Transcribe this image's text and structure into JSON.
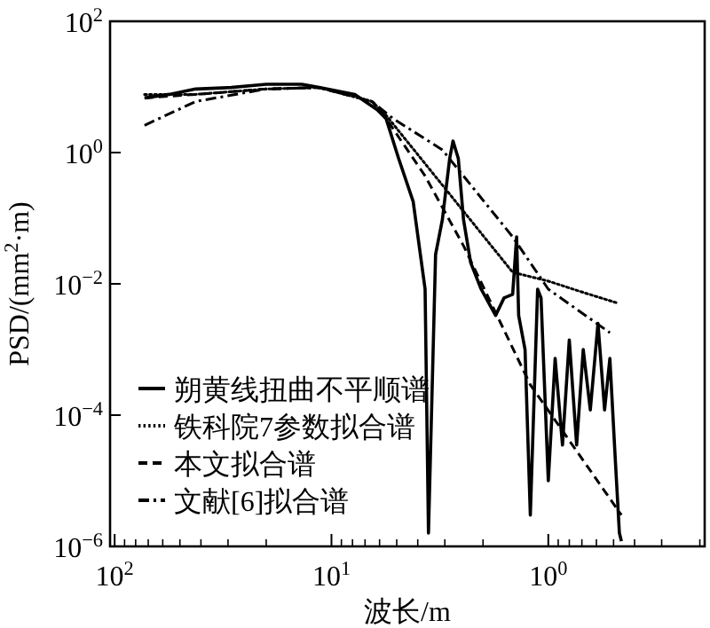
{
  "chart_data": {
    "type": "line",
    "xlabel": "波长/m",
    "ylabel": "PSD/(mm$^{2}$·m)",
    "log": "xy",
    "grid": false,
    "legend": "bottom left",
    "marker": "none",
    "xlim": [
      105,
      0.19
    ],
    "xticks": [
      {
        "value": 100,
        "label": "10$^{2}$"
      },
      {
        "value": 10,
        "label": "10$^{1}$"
      },
      {
        "value": 1,
        "label": "10$^{0}$"
      }
    ],
    "ylim": [
      1e-06,
      100
    ],
    "yticks": [
      {
        "value": 1e-06,
        "label": "10$^{−6}$"
      },
      {
        "value": 0.0001,
        "label": "10$^{−4}$"
      },
      {
        "value": 0.01,
        "label": "10$^{−2}$"
      },
      {
        "value": 1,
        "label": "10$^{0}$"
      },
      {
        "value": 100,
        "label": "10$^{2}$"
      }
    ],
    "series": [
      {
        "name": "朔黄线扭曲不平顺谱",
        "color": "#000000",
        "line_style": "solid",
        "x": [
          72.8,
          56,
          42.3,
          29,
          20.0,
          13.7,
          11.4,
          7.8,
          6.15,
          5.6,
          4.9,
          4.2,
          3.7,
          3.57,
          3.31,
          3.08,
          2.85,
          2.75,
          2.6,
          2.46,
          2.28,
          2.04,
          1.85,
          1.75,
          1.6,
          1.46,
          1.4,
          1.37,
          1.28,
          1.21,
          1.12,
          1.08,
          1.0,
          0.93,
          0.86,
          0.8,
          0.74,
          0.69,
          0.64,
          0.59,
          0.55,
          0.52,
          0.49,
          0.47,
          0.46
        ],
        "values": [
          6.8,
          7.7,
          9.3,
          9.8,
          11,
          11,
          9.8,
          7.7,
          4.5,
          3.3,
          0.81,
          0.18,
          0.0083,
          1.6e-06,
          0.028,
          0.095,
          0.81,
          1.5,
          0.81,
          0.095,
          0.021,
          0.0083,
          0.0046,
          0.0033,
          0.0061,
          0.0069,
          0.052,
          0.0033,
          0.001,
          3e-06,
          0.0083,
          0.0061,
          1e-05,
          0.00073,
          3.5e-05,
          0.0014,
          3.5e-05,
          0.001,
          0.00012,
          0.0025,
          0.00012,
          0.00073,
          1.9e-05,
          1.6e-06,
          1.2e-06
        ]
      },
      {
        "name": "铁科院7参数拟合谱",
        "color": "#000000",
        "line_style": "dotted",
        "x": [
          72.8,
          42.3,
          20.0,
          11.4,
          6.5,
          5.6,
          3.08,
          1.46,
          1.0,
          0.69,
          0.48
        ],
        "values": [
          7.7,
          7.7,
          9.3,
          9.8,
          6.0,
          3.7,
          0.32,
          0.015,
          0.011,
          0.0074,
          0.0051
        ]
      },
      {
        "name": "本文拟合谱",
        "color": "#000000",
        "line_style": "dashed",
        "x": [
          72.8,
          42.3,
          20.0,
          11.4,
          6.5,
          5.6,
          3.7,
          2.46,
          1.21,
          0.46
        ],
        "values": [
          6.8,
          7.7,
          9.3,
          9.8,
          6.0,
          3.3,
          0.44,
          0.038,
          0.00029,
          3e-06
        ]
      },
      {
        "name": "文献[6]拟合谱",
        "color": "#000000",
        "line_style": "dashdot",
        "x": [
          72.8,
          42.3,
          20.0,
          11.4,
          6.5,
          5.2,
          3.08,
          1.46,
          1.0,
          0.52
        ],
        "values": [
          2.6,
          6.0,
          9.3,
          9.8,
          6.0,
          3.3,
          1.1,
          0.052,
          0.0083,
          0.0018
        ]
      }
    ]
  }
}
